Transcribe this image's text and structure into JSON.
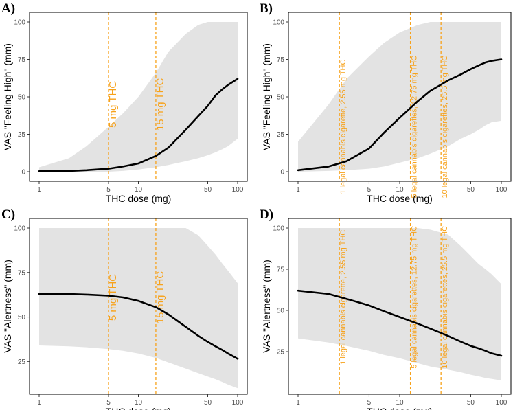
{
  "chart_data": [
    {
      "panel": "A)",
      "type": "line",
      "xlabel": "THC dose (mg)",
      "ylabel": "VAS \"Feeling High\" (mm)",
      "x_scale": "log",
      "xlim": [
        1,
        100
      ],
      "ylim": [
        0,
        100
      ],
      "x_ticks": [
        1,
        5,
        10,
        50,
        100
      ],
      "y_ticks": [
        0,
        25,
        50,
        75,
        100
      ],
      "grid": false,
      "series": [
        {
          "x": [
            1,
            2,
            3,
            5,
            7,
            10,
            15,
            20,
            30,
            40,
            50,
            60,
            70,
            80,
            100
          ],
          "values": [
            0.3,
            0.5,
            1,
            2,
            3.5,
            5.5,
            10.5,
            16,
            28,
            37,
            44,
            51,
            55,
            58,
            62
          ],
          "lower": [
            0,
            0,
            0,
            0,
            0.5,
            1.5,
            3,
            4.5,
            7,
            9,
            11,
            13,
            15,
            17,
            22
          ],
          "upper": [
            3,
            9,
            17,
            30,
            39,
            50,
            66,
            80,
            92,
            98,
            100,
            100,
            100,
            100,
            100
          ]
        }
      ],
      "reference_lines": [
        {
          "x": 5,
          "label": "5 mg THC"
        },
        {
          "x": 15,
          "label": "15 mg THC"
        }
      ],
      "colors": {
        "line": "#000000",
        "band": "#e3e3e3",
        "reference": "#f7a21b"
      }
    },
    {
      "panel": "B)",
      "type": "line",
      "xlabel": "THC dose (mg)",
      "ylabel": "VAS \"Feeling High\" (mm)",
      "x_scale": "log",
      "xlim": [
        1,
        100
      ],
      "ylim": [
        0,
        100
      ],
      "x_ticks": [
        1,
        5,
        10,
        50,
        100
      ],
      "y_ticks": [
        0,
        25,
        50,
        75,
        100
      ],
      "grid": false,
      "series": [
        {
          "x": [
            1,
            2,
            3,
            5,
            7,
            10,
            15,
            20,
            30,
            40,
            50,
            60,
            70,
            80,
            100
          ],
          "values": [
            1,
            3.5,
            7,
            15.5,
            26,
            36,
            47,
            54,
            61,
            65,
            68.5,
            71,
            73,
            74,
            75
          ],
          "lower": [
            0,
            0.5,
            1,
            2,
            3.5,
            6,
            9,
            12,
            17,
            22,
            25,
            28,
            31,
            33,
            34
          ],
          "upper": [
            20,
            45,
            62,
            77,
            86,
            93,
            98,
            100,
            100,
            100,
            100,
            100,
            100,
            100,
            100
          ]
        }
      ],
      "reference_lines": [
        {
          "x": 2.55,
          "label": "1 legal cannabis cigarette, 2.55 mg THC"
        },
        {
          "x": 12.75,
          "label": "5 legal cannabis cigarettes, 12.75 mg THC"
        },
        {
          "x": 25.5,
          "label": "10 legal cannabis cigarettes, 25.5 mg THC"
        }
      ],
      "colors": {
        "line": "#000000",
        "band": "#e3e3e3",
        "reference": "#f7a21b"
      }
    },
    {
      "panel": "C)",
      "type": "line",
      "xlabel": "THC dose (mg)",
      "ylabel": "VAS \"Alertness\" (mm)",
      "x_scale": "log",
      "xlim": [
        1,
        100
      ],
      "ylim": [
        12,
        100
      ],
      "x_ticks": [
        1,
        5,
        10,
        50,
        100
      ],
      "y_ticks": [
        25,
        50,
        75,
        100
      ],
      "grid": false,
      "series": [
        {
          "x": [
            1,
            2,
            3,
            5,
            7,
            10,
            15,
            20,
            30,
            40,
            50,
            60,
            70,
            80,
            100
          ],
          "values": [
            63,
            62.9,
            62.6,
            62,
            61,
            59,
            55.5,
            51.5,
            44.5,
            39.5,
            36,
            33.5,
            31.5,
            29.5,
            26.5
          ],
          "lower": [
            34,
            33.5,
            33,
            32,
            31,
            29.5,
            27,
            24.5,
            21,
            18.5,
            16.5,
            15,
            13.5,
            12,
            10
          ],
          "upper": [
            100,
            100,
            100,
            100,
            100,
            100,
            100,
            100,
            100,
            96,
            90,
            85,
            80,
            76,
            69
          ]
        }
      ],
      "reference_lines": [
        {
          "x": 5,
          "label": "5 mg THC"
        },
        {
          "x": 15,
          "label": "15 mg THC"
        }
      ],
      "colors": {
        "line": "#000000",
        "band": "#e3e3e3",
        "reference": "#f7a21b"
      }
    },
    {
      "panel": "D)",
      "type": "line",
      "xlabel": "THC dose (mg)",
      "ylabel": "VAS \"Alertness\" (mm)",
      "x_scale": "log",
      "xlim": [
        1,
        100
      ],
      "ylim": [
        5,
        100
      ],
      "x_ticks": [
        1,
        5,
        10,
        50,
        100
      ],
      "y_ticks": [
        25,
        50,
        75,
        100
      ],
      "grid": false,
      "series": [
        {
          "x": [
            1,
            2,
            3,
            5,
            7,
            10,
            15,
            20,
            30,
            40,
            50,
            60,
            70,
            80,
            100
          ],
          "values": [
            62,
            60,
            57,
            53,
            49.5,
            46,
            42,
            39,
            34.5,
            31,
            28.5,
            27,
            25.5,
            24,
            22.5
          ],
          "lower": [
            33,
            30.5,
            28.5,
            25.5,
            23,
            21,
            18,
            16,
            14,
            12.5,
            11,
            10,
            9,
            8.5,
            7.5
          ],
          "upper": [
            100,
            100,
            100,
            100,
            100,
            100,
            100,
            99,
            96,
            89,
            83,
            78,
            75,
            72,
            66
          ]
        }
      ],
      "reference_lines": [
        {
          "x": 2.55,
          "label": "1 legal cannabis cigarette, 2.55 mg THC"
        },
        {
          "x": 12.75,
          "label": "5 legal cannabis cigarettes, 12.75 mg THC"
        },
        {
          "x": 25.5,
          "label": "10 legal cannabis cigarettes, 25.5 mg THC"
        }
      ],
      "colors": {
        "line": "#000000",
        "band": "#e3e3e3",
        "reference": "#f7a21b"
      }
    }
  ]
}
